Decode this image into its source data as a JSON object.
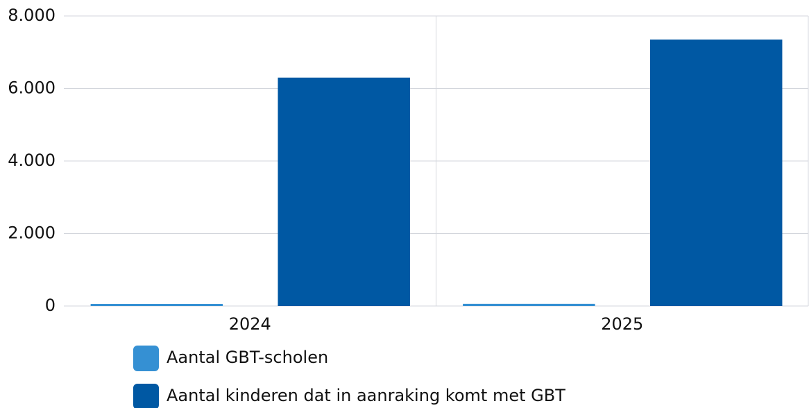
{
  "chart_data": {
    "type": "bar",
    "categories": [
      "2024",
      "2025"
    ],
    "series": [
      {
        "name": "Aantal GBT-scholen",
        "color": "#3590d3",
        "values": [
          57,
          60
        ]
      },
      {
        "name": "Aantal kinderen dat in aanraking komt met GBT",
        "color": "#0058a3",
        "values": [
          6300,
          7350
        ]
      }
    ],
    "ylim": [
      0,
      8000
    ],
    "yticks": [
      0,
      {
        "value": 2000,
        "label": "2.000"
      },
      {
        "value": 4000,
        "label": "4.000"
      },
      {
        "value": 6000,
        "label": "6.000"
      },
      {
        "value": 8000,
        "label": "8.000"
      }
    ],
    "grid": true
  }
}
